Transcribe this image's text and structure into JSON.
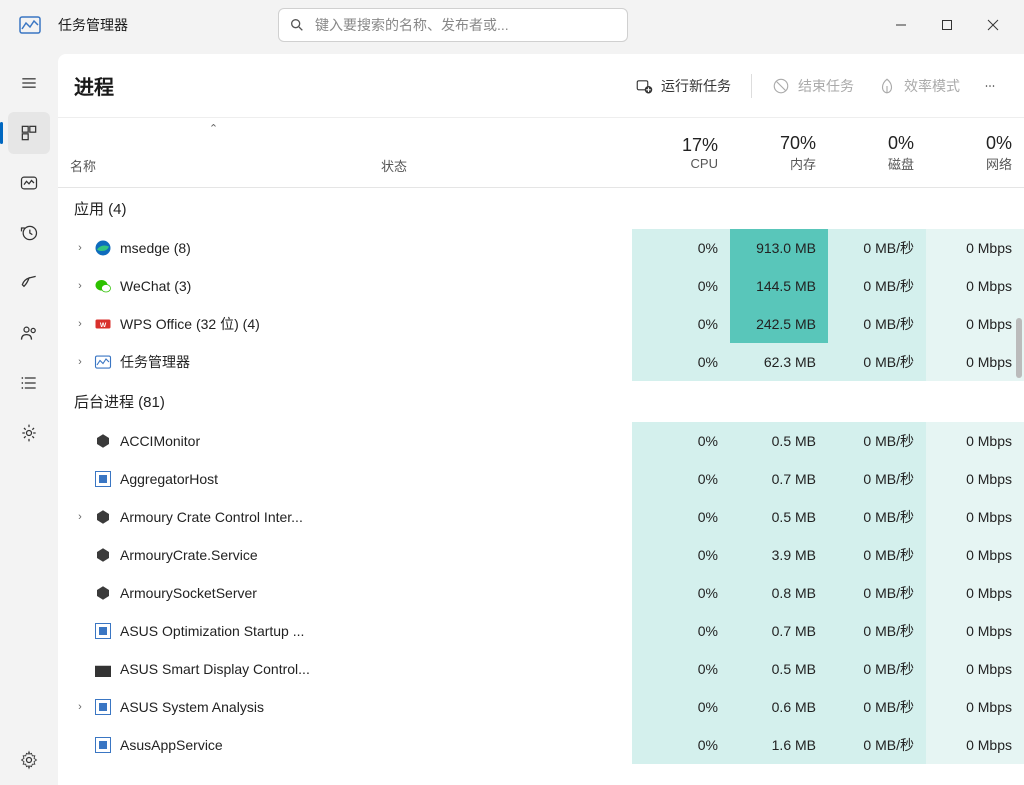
{
  "titlebar": {
    "title": "任务管理器",
    "search_placeholder": "键入要搜索的名称、发布者或..."
  },
  "toolbar": {
    "page_title": "进程",
    "run_new_task": "运行新任务",
    "end_task": "结束任务",
    "efficiency_mode": "效率模式"
  },
  "columns": {
    "name": "名称",
    "status": "状态",
    "cpu_label": "CPU",
    "cpu_pct": "17%",
    "mem_label": "内存",
    "mem_pct": "70%",
    "disk_label": "磁盘",
    "disk_pct": "0%",
    "net_label": "网络",
    "net_pct": "0%"
  },
  "groups": {
    "apps": {
      "label": "应用 (4)"
    },
    "background": {
      "label": "后台进程 (81)"
    }
  },
  "apps": [
    {
      "name": "msedge (8)",
      "expand": true,
      "icon": "edge",
      "cpu": "0%",
      "mem": "913.0 MB",
      "mem_heat": "med",
      "disk": "0 MB/秒",
      "net": "0 Mbps"
    },
    {
      "name": "WeChat (3)",
      "expand": true,
      "icon": "wechat",
      "cpu": "0%",
      "mem": "144.5 MB",
      "mem_heat": "med",
      "disk": "0 MB/秒",
      "net": "0 Mbps"
    },
    {
      "name": "WPS Office (32 位) (4)",
      "expand": true,
      "icon": "wps",
      "cpu": "0%",
      "mem": "242.5 MB",
      "mem_heat": "med",
      "disk": "0 MB/秒",
      "net": "0 Mbps"
    },
    {
      "name": "任务管理器",
      "expand": true,
      "icon": "tm",
      "cpu": "0%",
      "mem": "62.3 MB",
      "mem_heat": "low",
      "disk": "0 MB/秒",
      "net": "0 Mbps"
    }
  ],
  "background": [
    {
      "name": "ACCIMonitor",
      "expand": false,
      "icon": "hex",
      "cpu": "0%",
      "mem": "0.5 MB",
      "disk": "0 MB/秒",
      "net": "0 Mbps"
    },
    {
      "name": "AggregatorHost",
      "expand": false,
      "icon": "box",
      "cpu": "0%",
      "mem": "0.7 MB",
      "disk": "0 MB/秒",
      "net": "0 Mbps"
    },
    {
      "name": "Armoury Crate Control Inter...",
      "expand": true,
      "icon": "hex",
      "cpu": "0%",
      "mem": "0.5 MB",
      "disk": "0 MB/秒",
      "net": "0 Mbps"
    },
    {
      "name": "ArmouryCrate.Service",
      "expand": false,
      "icon": "hex",
      "cpu": "0%",
      "mem": "3.9 MB",
      "disk": "0 MB/秒",
      "net": "0 Mbps"
    },
    {
      "name": "ArmourySocketServer",
      "expand": false,
      "icon": "hex",
      "cpu": "0%",
      "mem": "0.8 MB",
      "disk": "0 MB/秒",
      "net": "0 Mbps"
    },
    {
      "name": "ASUS Optimization Startup ...",
      "expand": false,
      "icon": "box",
      "cpu": "0%",
      "mem": "0.7 MB",
      "disk": "0 MB/秒",
      "net": "0 Mbps"
    },
    {
      "name": "ASUS Smart Display Control...",
      "expand": false,
      "icon": "gift",
      "cpu": "0%",
      "mem": "0.5 MB",
      "disk": "0 MB/秒",
      "net": "0 Mbps"
    },
    {
      "name": "ASUS System Analysis",
      "expand": true,
      "icon": "box",
      "cpu": "0%",
      "mem": "0.6 MB",
      "disk": "0 MB/秒",
      "net": "0 Mbps"
    },
    {
      "name": "AsusAppService",
      "expand": false,
      "icon": "box",
      "cpu": "0%",
      "mem": "1.6 MB",
      "disk": "0 MB/秒",
      "net": "0 Mbps"
    }
  ],
  "colors": {
    "accent": "#0067c0",
    "heat_low": "#d4f0ed",
    "heat_med": "#59c6ba",
    "heat_low2": "#e6f5f3"
  }
}
